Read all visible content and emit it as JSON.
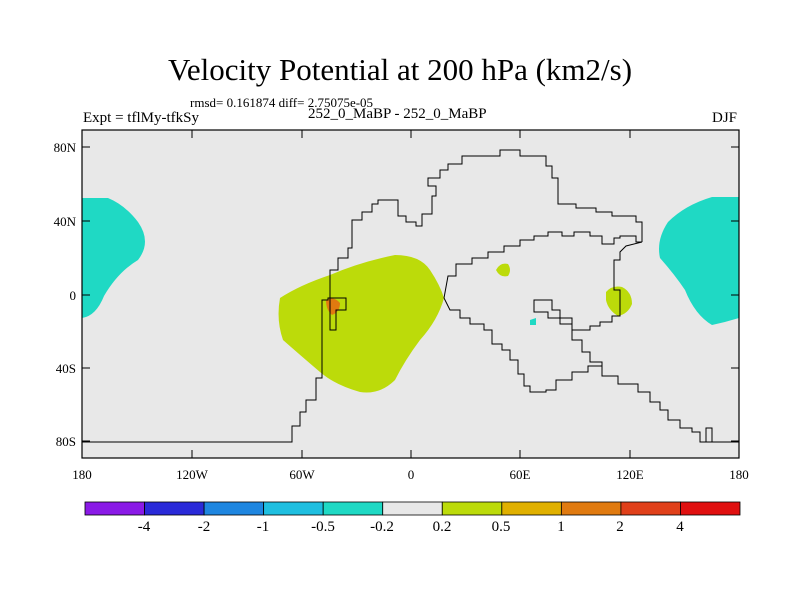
{
  "title": "Velocity Potential at 200 hPa (km2/s)",
  "stats": "rmsd= 0.161874 diff= 2.75075e-05",
  "left_label": "Expt = tflMy-tfkSy",
  "center_label": "252_0_MaBP - 252_0_MaBP",
  "right_label": "DJF",
  "axes": {
    "y_ticks": [
      "80N",
      "40N",
      "0",
      "40S",
      "80S"
    ],
    "x_ticks": [
      "180",
      "120W",
      "60W",
      "0",
      "60E",
      "120E",
      "180"
    ]
  },
  "colorbar": {
    "colors": [
      "#8a1ae6",
      "#2a2ad8",
      "#1e86e0",
      "#1fbfe0",
      "#1fd9c4",
      "#e8e8e8",
      "#bcdb0a",
      "#e0b000",
      "#e07a10",
      "#e0401a",
      "#e01010"
    ],
    "labels": [
      "-4",
      "-2",
      "-1",
      "-0.5",
      "-0.2",
      "0.2",
      "0.5",
      "1",
      "2",
      "4"
    ]
  },
  "colors": {
    "background": "#e8e8e8",
    "positive_low": "#bcdb0a",
    "positive_mid": "#e07a10",
    "negative_low": "#1fd9c4",
    "continent_outline": "#000000"
  }
}
